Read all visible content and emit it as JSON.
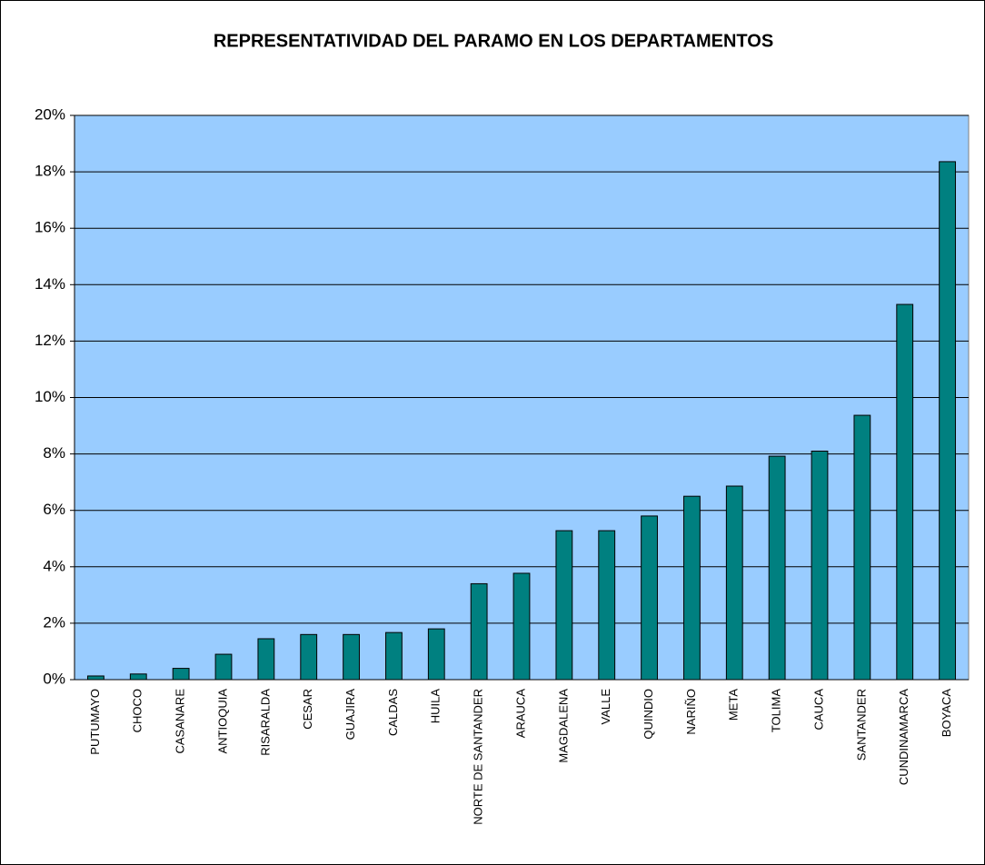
{
  "chart_data": {
    "type": "bar",
    "title": "REPRESENTATIVIDAD DEL PARAMO EN LOS DEPARTAMENTOS",
    "categories": [
      "PUTUMAYO",
      "CHOCO",
      "CASANARE",
      "ANTIOQUIA",
      "RISARALDA",
      "CESAR",
      "GUAJIRA",
      "CALDAS",
      "HUILA",
      "NORTE DE SANTANDER",
      "ARAUCA",
      "MAGDALENA",
      "VALLE",
      "QUINDIO",
      "NARIÑO",
      "META",
      "TOLIMA",
      "CAUCA",
      "SANTANDER",
      "CUNDINAMARCA",
      "BOYACA"
    ],
    "values": [
      0.13,
      0.2,
      0.4,
      0.9,
      1.45,
      1.6,
      1.6,
      1.67,
      1.8,
      3.4,
      3.77,
      5.28,
      5.28,
      5.8,
      6.5,
      6.86,
      7.92,
      8.1,
      9.37,
      13.3,
      18.36
    ],
    "color": "#008080",
    "background": "#99ccff",
    "ylim": [
      0,
      20
    ],
    "yticks": [
      {
        "value": 0,
        "label": "0%"
      },
      {
        "value": 2,
        "label": "2%"
      },
      {
        "value": 4,
        "label": "4%"
      },
      {
        "value": 6,
        "label": "6%"
      },
      {
        "value": 8,
        "label": "8%"
      },
      {
        "value": 10,
        "label": "10%"
      },
      {
        "value": 12,
        "label": "12%"
      },
      {
        "value": 14,
        "label": "14%"
      },
      {
        "value": 16,
        "label": "16%"
      },
      {
        "value": 18,
        "label": "18%"
      },
      {
        "value": 20,
        "label": "20%"
      }
    ],
    "grid": true
  }
}
